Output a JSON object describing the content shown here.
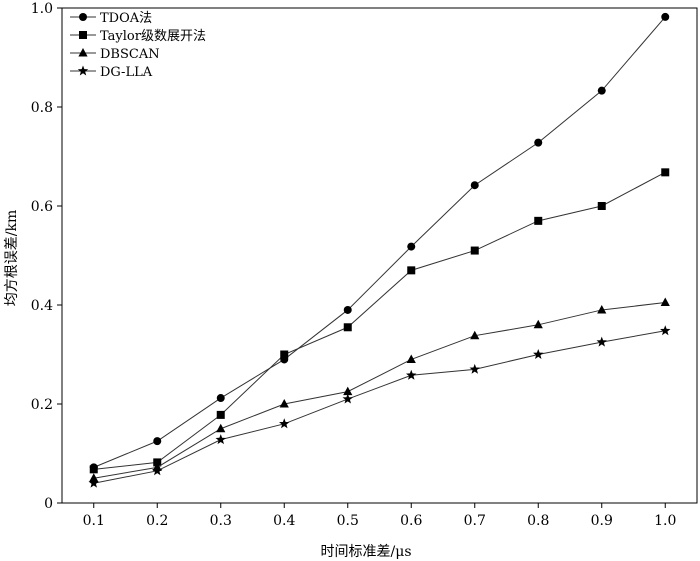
{
  "chart_data": {
    "type": "line",
    "xlabel": "时间标准差/μs",
    "ylabel": "均方根误差/km",
    "xlim": [
      0.05,
      1.05
    ],
    "ylim": [
      0,
      1.0
    ],
    "x": [
      0.1,
      0.2,
      0.3,
      0.4,
      0.5,
      0.6,
      0.7,
      0.8,
      0.9,
      1.0
    ],
    "x_ticks": [
      "0.1",
      "0.2",
      "0.3",
      "0.4",
      "0.5",
      "0.6",
      "0.7",
      "0.8",
      "0.9",
      "1.0"
    ],
    "y_ticks": [
      0,
      0.2,
      0.4,
      0.6,
      0.8,
      1.0
    ],
    "y_tick_labels": [
      "0",
      "0.2",
      "0.4",
      "0.6",
      "0.8",
      "1.0"
    ],
    "grid": false,
    "legend_position": "top-left",
    "series": [
      {
        "name": "TDOA法",
        "marker": "circle",
        "values": [
          0.072,
          0.125,
          0.212,
          0.29,
          0.39,
          0.518,
          0.642,
          0.728,
          0.833,
          0.982
        ]
      },
      {
        "name": "Taylor级数展开法",
        "marker": "square",
        "values": [
          0.068,
          0.082,
          0.178,
          0.3,
          0.355,
          0.47,
          0.51,
          0.57,
          0.6,
          0.668
        ]
      },
      {
        "name": "DBSCAN",
        "marker": "triangle",
        "values": [
          0.05,
          0.072,
          0.15,
          0.2,
          0.225,
          0.29,
          0.338,
          0.36,
          0.39,
          0.405
        ]
      },
      {
        "name": "DG-LLA",
        "marker": "star",
        "values": [
          0.04,
          0.065,
          0.128,
          0.16,
          0.21,
          0.258,
          0.27,
          0.3,
          0.325,
          0.348
        ]
      }
    ]
  }
}
